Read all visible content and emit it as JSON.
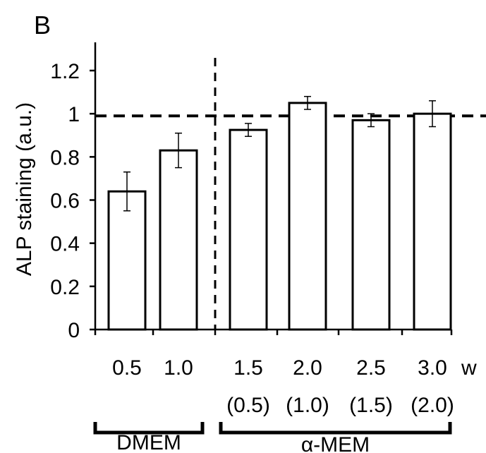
{
  "chart_data": {
    "type": "bar",
    "panel_label": "B",
    "ylabel": "ALP staining (a.u.)",
    "ylim": [
      0,
      1.2
    ],
    "yticks": [
      "0",
      "0.2",
      "0.4",
      "0.6",
      "0.8",
      "1",
      "1.2"
    ],
    "categories": [
      "0.5",
      "1.0",
      "1.5",
      "2.0",
      "2.5",
      "3.0"
    ],
    "sub_labels": [
      "",
      "",
      "(0.5)",
      "(1.0)",
      "(1.5)",
      "(2.0)"
    ],
    "x_unit": "w",
    "values": [
      0.64,
      0.83,
      0.925,
      1.05,
      0.97,
      1.0
    ],
    "errors": [
      0.09,
      0.08,
      0.03,
      0.03,
      0.03,
      0.06
    ],
    "reference_line": 0.99,
    "groups": [
      {
        "label": "DMEM",
        "members": [
          0,
          1
        ]
      },
      {
        "label": "α-MEM",
        "members": [
          2,
          3,
          4,
          5
        ]
      }
    ],
    "bar_fill": "#ffffff",
    "bar_stroke": "#000000",
    "grid": false,
    "legend": "none"
  }
}
